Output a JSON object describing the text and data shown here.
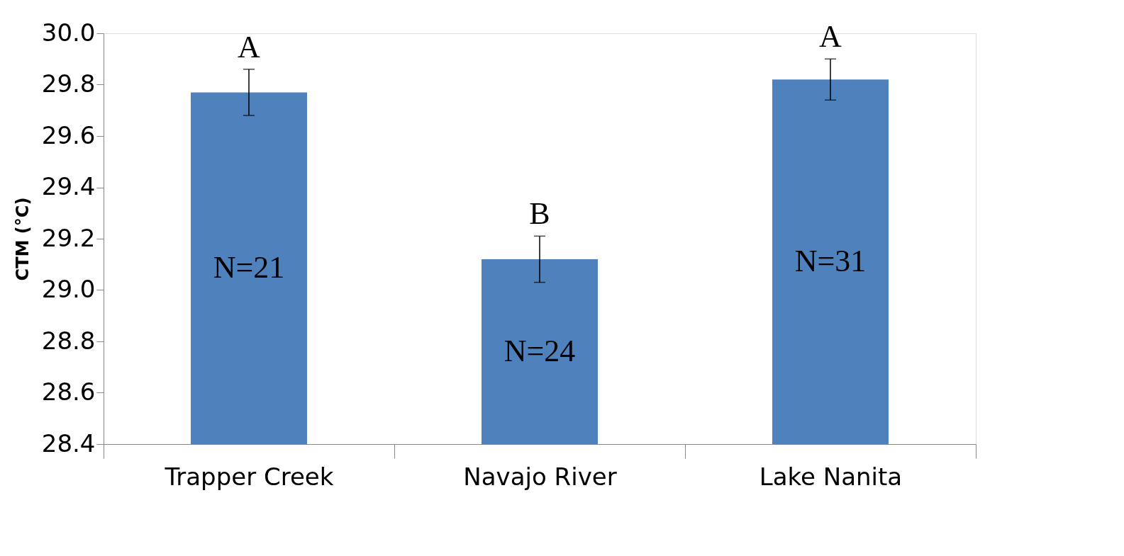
{
  "chart_data": {
    "type": "bar",
    "ylabel": "CTM (°C)",
    "categories": [
      "Trapper Creek",
      "Navajo River",
      "Lake Nanita"
    ],
    "values": [
      29.77,
      29.12,
      29.82
    ],
    "color": "#4f81bd",
    "errors": [
      0.09,
      0.09,
      0.08
    ],
    "ylim": [
      28.4,
      30.0
    ],
    "yticks": [
      {
        "value": 28.4,
        "label": "28.4"
      },
      {
        "value": 28.6,
        "label": "28.6"
      },
      {
        "value": 28.8,
        "label": "28.8"
      },
      {
        "value": 29.0,
        "label": "29.0"
      },
      {
        "value": 29.2,
        "label": "29.2"
      },
      {
        "value": 29.4,
        "label": "29.4"
      },
      {
        "value": 29.6,
        "label": "29.6"
      },
      {
        "value": 29.8,
        "label": "29.8"
      },
      {
        "value": 30.0,
        "label": "30.0"
      }
    ],
    "grid": false,
    "annotations": [
      "A",
      "B",
      "A",
      "N=21",
      "N=24",
      "N=31"
    ]
  }
}
